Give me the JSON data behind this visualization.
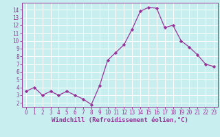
{
  "x": [
    0,
    1,
    2,
    3,
    4,
    5,
    6,
    7,
    8,
    9,
    10,
    11,
    12,
    13,
    14,
    15,
    16,
    17,
    18,
    19,
    20,
    21,
    22,
    23
  ],
  "y": [
    3.5,
    4.0,
    3.0,
    3.5,
    3.0,
    3.5,
    3.0,
    2.5,
    1.8,
    4.2,
    7.5,
    8.5,
    9.5,
    11.5,
    13.8,
    14.3,
    14.2,
    11.7,
    12.0,
    10.0,
    9.2,
    8.2,
    7.0,
    6.7
  ],
  "line_color": "#993399",
  "marker": "D",
  "marker_size": 2.2,
  "bg_color": "#c8eef0",
  "grid_color": "#ffffff",
  "xlabel": "Windchill (Refroidissement éolien,°C)",
  "xlim": [
    -0.5,
    23.5
  ],
  "ylim": [
    1.5,
    14.9
  ],
  "xticks": [
    0,
    1,
    2,
    3,
    4,
    5,
    6,
    7,
    8,
    9,
    10,
    11,
    12,
    13,
    14,
    15,
    16,
    17,
    18,
    19,
    20,
    21,
    22,
    23
  ],
  "yticks": [
    2,
    3,
    4,
    5,
    6,
    7,
    8,
    9,
    10,
    11,
    12,
    13,
    14
  ],
  "tick_color": "#993399",
  "label_color": "#993399",
  "spine_color": "#993399",
  "tick_fontsize": 5.5,
  "xlabel_fontsize": 6.5
}
